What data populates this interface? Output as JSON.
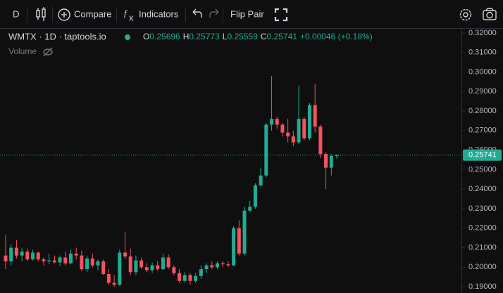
{
  "toolbar": {
    "interval": "D",
    "compare": "Compare",
    "indicators": "Indicators",
    "flip": "Flip Pair"
  },
  "legend": {
    "symbol": "WMTX · 1D · taptools.io",
    "ohlc_labels": [
      "O",
      "H",
      "L",
      "C"
    ],
    "change": "+0.00046 (+0.18%)",
    "volume": "Volume"
  },
  "chart_data": {
    "type": "candlestick",
    "up_color": "#22ab94",
    "down_color": "#f7525f",
    "grid": false,
    "open": [
      0.206,
      0.203,
      0.21,
      0.206,
      0.208,
      0.204,
      0.2075,
      0.204,
      0.203,
      0.2035,
      0.2025,
      0.205,
      0.202,
      0.207,
      0.206,
      0.199,
      0.2045,
      0.201,
      0.203,
      0.1965,
      0.192,
      0.191,
      0.2075,
      0.2055,
      0.1975,
      0.2035,
      0.2,
      0.1985,
      0.201,
      0.199,
      0.205,
      0.2,
      0.197,
      0.193,
      0.196,
      0.193,
      0.1955,
      0.199,
      0.201,
      0.2,
      0.202,
      0.2015,
      0.201,
      0.22,
      0.207,
      0.229,
      0.231,
      0.242,
      0.247,
      0.273,
      0.276,
      0.273,
      0.269,
      0.267,
      0.264,
      0.276,
      0.266,
      0.283,
      0.272,
      0.258,
      0.251,
      0.25696
    ],
    "high": [
      0.2165,
      0.212,
      0.214,
      0.21,
      0.2095,
      0.209,
      0.208,
      0.205,
      0.207,
      0.206,
      0.206,
      0.208,
      0.209,
      0.21,
      0.2085,
      0.206,
      0.207,
      0.204,
      0.204,
      0.199,
      0.196,
      0.209,
      0.218,
      0.2095,
      0.206,
      0.205,
      0.202,
      0.2025,
      0.203,
      0.207,
      0.2065,
      0.201,
      0.199,
      0.1975,
      0.197,
      0.197,
      0.201,
      0.202,
      0.203,
      0.203,
      0.203,
      0.203,
      0.221,
      0.224,
      0.231,
      0.234,
      0.243,
      0.251,
      0.274,
      0.298,
      0.277,
      0.274,
      0.276,
      0.27,
      0.293,
      0.277,
      0.284,
      0.294,
      0.273,
      0.259,
      0.258,
      0.25773
    ],
    "low": [
      0.199,
      0.201,
      0.2045,
      0.203,
      0.203,
      0.2035,
      0.203,
      0.201,
      0.2015,
      0.202,
      0.2005,
      0.201,
      0.2015,
      0.204,
      0.198,
      0.1975,
      0.2,
      0.1985,
      0.196,
      0.191,
      0.19,
      0.1905,
      0.204,
      0.196,
      0.196,
      0.199,
      0.1975,
      0.197,
      0.198,
      0.1985,
      0.199,
      0.196,
      0.192,
      0.192,
      0.191,
      0.192,
      0.194,
      0.197,
      0.199,
      0.199,
      0.2,
      0.2,
      0.2005,
      0.206,
      0.206,
      0.228,
      0.23,
      0.241,
      0.246,
      0.27,
      0.271,
      0.267,
      0.264,
      0.262,
      0.263,
      0.265,
      0.265,
      0.269,
      0.256,
      0.24,
      0.247,
      0.25559
    ],
    "close": [
      0.203,
      0.21,
      0.206,
      0.208,
      0.204,
      0.2075,
      0.204,
      0.203,
      0.2035,
      0.2025,
      0.205,
      0.202,
      0.207,
      0.206,
      0.199,
      0.2045,
      0.201,
      0.203,
      0.1965,
      0.192,
      0.191,
      0.2075,
      0.2055,
      0.1975,
      0.2035,
      0.2,
      0.1985,
      0.201,
      0.199,
      0.205,
      0.2,
      0.197,
      0.193,
      0.196,
      0.193,
      0.1955,
      0.199,
      0.201,
      0.2,
      0.202,
      0.2015,
      0.201,
      0.22,
      0.207,
      0.229,
      0.231,
      0.242,
      0.247,
      0.273,
      0.276,
      0.273,
      0.269,
      0.267,
      0.264,
      0.276,
      0.266,
      0.283,
      0.272,
      0.258,
      0.251,
      0.257,
      0.25741
    ],
    "ylim": [
      0.1868,
      0.3232
    ],
    "yticks": [
      {
        "value": 0.19,
        "label": "0.19000"
      },
      {
        "value": 0.2,
        "label": "0.20000"
      },
      {
        "value": 0.21,
        "label": "0.21000"
      },
      {
        "value": 0.22,
        "label": "0.22000"
      },
      {
        "value": 0.23,
        "label": "0.23000"
      },
      {
        "value": 0.24,
        "label": "0.24000"
      },
      {
        "value": 0.25,
        "label": "0.25000"
      },
      {
        "value": 0.26,
        "label": "0.26000"
      },
      {
        "value": 0.27,
        "label": "0.27000"
      },
      {
        "value": 0.28,
        "label": "0.28000"
      },
      {
        "value": 0.29,
        "label": "0.29000"
      },
      {
        "value": 0.3,
        "label": "0.30000"
      },
      {
        "value": 0.31,
        "label": "0.31000"
      },
      {
        "value": 0.32,
        "label": "0.32000"
      }
    ]
  }
}
